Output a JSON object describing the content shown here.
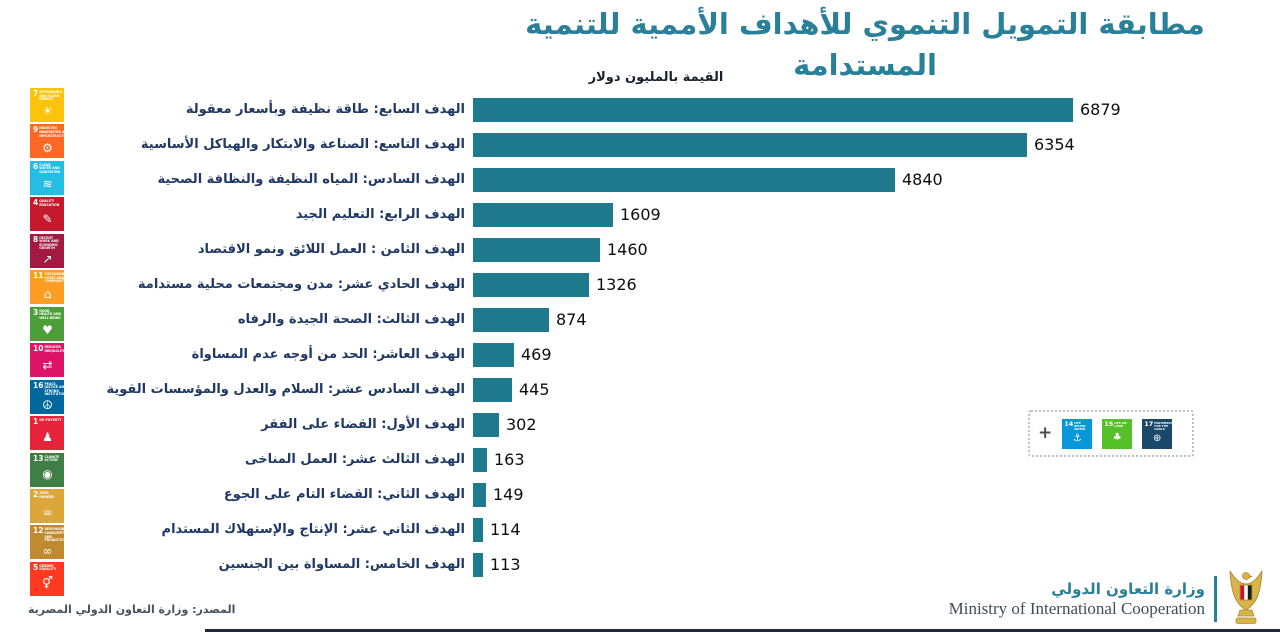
{
  "page": {
    "title": "مطابقة التمويل التنموي للأهداف الأممية للتنمية المستدامة",
    "subtitle": "القيمة بالمليون دولار",
    "source": "المصدر: وزارة التعاون الدولي المصرية",
    "footer": {
      "ministry_ar": "وزارة التعاون الدولي",
      "ministry_en": "Ministry of International Cooperation"
    }
  },
  "colors": {
    "bar": "#1F7A8E",
    "title": "#2A7F99",
    "label": "#1F3864",
    "value": "#0E0E0E"
  },
  "chart_data": {
    "type": "bar",
    "orientation": "horizontal",
    "title": "مطابقة التمويل التنموي للأهداف الأممية للتنمية المستدامة",
    "unit_label": "القيمة بالمليون دولار",
    "xlim": [
      0,
      7000
    ],
    "grid": false,
    "value_labels": true,
    "categories": [
      "الهدف السابع: طاقة نظيفة وبأسعار معقولة",
      "الهدف التاسع: الصناعة والابتكار والهياكل الأساسية",
      "الهدف السادس: المياه النظيفة والنظافة الصحية",
      "الهدف الرابع: التعليم الجيد",
      "الهدف الثامن : العمل اللائق ونمو الاقتصاد",
      "الهدف الحادي عشر: مدن ومجتمعات محلية مستدامة",
      "الهدف الثالث: الصحة الجيدة والرفاه",
      "الهدف العاشر: الحد من أوجه عدم المساواة",
      "الهدف السادس عشر: السلام والعدل والمؤسسات القوية",
      "الهدف الأول: القضاء على الفقر",
      "الهدف الثالث عشر: العمل المناخى",
      "الهدف الثاني: القضاء التام على الجوع",
      "الهدف الثاني عشر: الإنتاج والإستهلاك المستدام",
      "الهدف الخامس: المساواة بين الجنسين"
    ],
    "values": [
      6879,
      6354,
      4840,
      1609,
      1460,
      1326,
      874,
      469,
      445,
      302,
      163,
      149,
      114,
      113
    ],
    "rows": [
      {
        "sdg": 7,
        "label": "الهدف السابع: طاقة نظيفة وبأسعار معقولة",
        "value": 6879
      },
      {
        "sdg": 9,
        "label": "الهدف التاسع: الصناعة والابتكار والهياكل الأساسية",
        "value": 6354
      },
      {
        "sdg": 6,
        "label": "الهدف السادس: المياه النظيفة والنظافة الصحية",
        "value": 4840
      },
      {
        "sdg": 4,
        "label": "الهدف الرابع: التعليم الجيد",
        "value": 1609
      },
      {
        "sdg": 8,
        "label": "الهدف الثامن : العمل اللائق ونمو الاقتصاد",
        "value": 1460
      },
      {
        "sdg": 11,
        "label": "الهدف الحادي عشر: مدن ومجتمعات محلية مستدامة",
        "value": 1326
      },
      {
        "sdg": 3,
        "label": "الهدف الثالث: الصحة الجيدة والرفاه",
        "value": 874
      },
      {
        "sdg": 10,
        "label": "الهدف العاشر: الحد من أوجه عدم المساواة",
        "value": 469
      },
      {
        "sdg": 16,
        "label": "الهدف السادس عشر: السلام والعدل والمؤسسات القوية",
        "value": 445
      },
      {
        "sdg": 1,
        "label": "الهدف الأول: القضاء على الفقر",
        "value": 302
      },
      {
        "sdg": 13,
        "label": "الهدف الثالث عشر: العمل المناخى",
        "value": 163
      },
      {
        "sdg": 2,
        "label": "الهدف الثاني: القضاء التام على الجوع",
        "value": 149
      },
      {
        "sdg": 12,
        "label": "الهدف الثاني عشر: الإنتاج والإستهلاك المستدام",
        "value": 114
      },
      {
        "sdg": 5,
        "label": "الهدف الخامس: المساواة بين الجنسين",
        "value": 113
      }
    ]
  },
  "sdg_column": [
    {
      "num": 7,
      "title": "AFFORDABLE AND CLEAN ENERGY",
      "color": "#FCC30B",
      "glyph": "☀",
      "icon": "sun-icon"
    },
    {
      "num": 9,
      "title": "INDUSTRY, INNOVATION AND INFRASTRUCTURE",
      "color": "#FD6925",
      "glyph": "⚙",
      "icon": "gear-icon"
    },
    {
      "num": 6,
      "title": "CLEAN WATER AND SANITATION",
      "color": "#26BDE2",
      "glyph": "≋",
      "icon": "water-icon"
    },
    {
      "num": 4,
      "title": "QUALITY EDUCATION",
      "color": "#C5192D",
      "glyph": "✎",
      "icon": "education-icon"
    },
    {
      "num": 8,
      "title": "DECENT WORK AND ECONOMIC GROWTH",
      "color": "#A21942",
      "glyph": "↗",
      "icon": "growth-arrow-icon"
    },
    {
      "num": 11,
      "title": "SUSTAINABLE CITIES AND COMMUNITIES",
      "color": "#FD9D24",
      "glyph": "⌂",
      "icon": "city-icon"
    },
    {
      "num": 3,
      "title": "GOOD HEALTH AND WELL-BEING",
      "color": "#4C9F38",
      "glyph": "♥",
      "icon": "heart-icon"
    },
    {
      "num": 10,
      "title": "REDUCED INEQUALITIES",
      "color": "#DD1367",
      "glyph": "⇄",
      "icon": "equality-arrows-icon"
    },
    {
      "num": 16,
      "title": "PEACE, JUSTICE AND STRONG INSTITUTIONS",
      "color": "#00689D",
      "glyph": "☮",
      "icon": "peace-icon"
    },
    {
      "num": 1,
      "title": "NO POVERTY",
      "color": "#E5243B",
      "glyph": "♟",
      "icon": "people-icon"
    },
    {
      "num": 13,
      "title": "CLIMATE ACTION",
      "color": "#3F7E44",
      "glyph": "◉",
      "icon": "eye-globe-icon"
    },
    {
      "num": 2,
      "title": "ZERO HUNGER",
      "color": "#DDA63A",
      "glyph": "☕",
      "icon": "bowl-icon"
    },
    {
      "num": 12,
      "title": "RESPONSIBLE CONSUMPTION AND PRODUCTION",
      "color": "#BF8B2E",
      "glyph": "∞",
      "icon": "infinity-icon"
    },
    {
      "num": 5,
      "title": "GENDER EQUALITY",
      "color": "#FF3A21",
      "glyph": "⚥",
      "icon": "gender-icon"
    }
  ],
  "unfunded_box": {
    "plus_glyph": "+",
    "items": [
      {
        "num": 14,
        "title": "LIFE BELOW WATER",
        "color": "#0A97D9",
        "glyph": "⚓",
        "icon": "fish-icon"
      },
      {
        "num": 15,
        "title": "LIFE ON LAND",
        "color": "#56C02B",
        "glyph": "♣",
        "icon": "tree-icon"
      },
      {
        "num": 17,
        "title": "PARTNERSHIPS FOR THE GOALS",
        "color": "#19486A",
        "glyph": "⊕",
        "icon": "partnership-rings-icon"
      }
    ]
  }
}
